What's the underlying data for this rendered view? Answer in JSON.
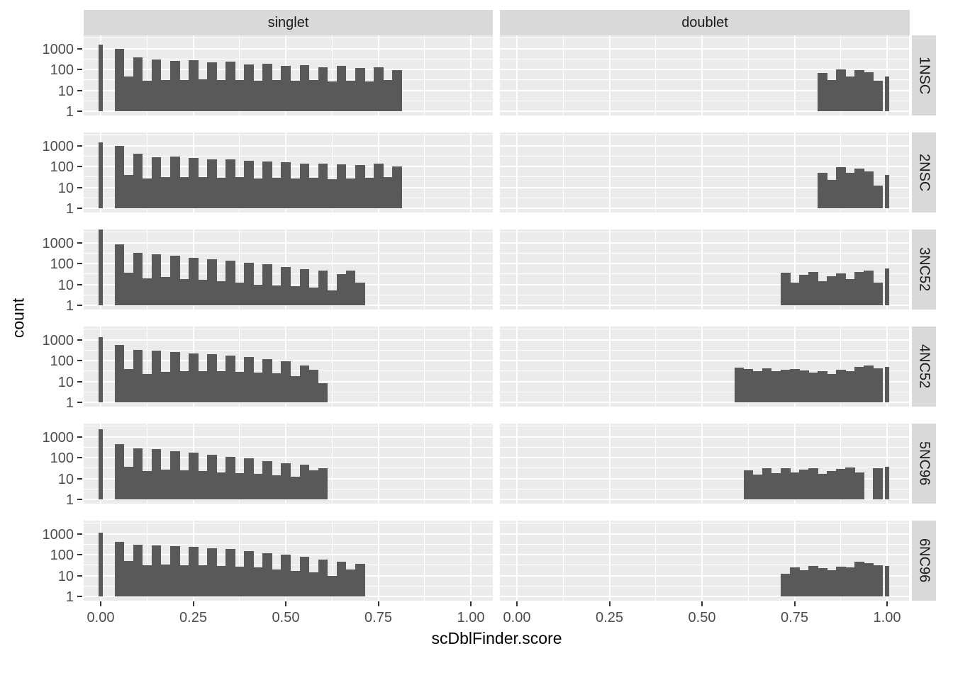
{
  "figure": {
    "xlabel": "scDblFinder.score",
    "ylabel": "count"
  },
  "style": {
    "panel_bg": "#EBEBEB",
    "grid_color": "#FFFFFF",
    "strip_bg": "#D9D9D9",
    "bar_color": "#595959",
    "tick_label_color": "#4D4D4D",
    "axis_title_color": "#000000",
    "tick_mark_color": "#333333"
  },
  "chart_data": {
    "type": "bar",
    "subtype": "faceted-log-histogram",
    "title": "",
    "xlabel": "scDblFinder.score",
    "ylabel": "count",
    "facet_columns": [
      "singlet",
      "doublet"
    ],
    "facet_rows": [
      "1NSC",
      "2NSC",
      "3NC52",
      "4NC52",
      "5NC96",
      "6NC96"
    ],
    "x_scale": {
      "domain": [
        -0.05,
        1.05
      ],
      "ticks": [
        0,
        0.25,
        0.5,
        0.75,
        1.0
      ],
      "tick_labels": [
        "0.00",
        "0.25",
        "0.50",
        "0.75",
        "1.00"
      ],
      "minor_breaks": [
        0.125,
        0.375,
        0.625,
        0.875
      ]
    },
    "y_scale": {
      "type": "log10",
      "domain_log": [
        -0.2,
        3.6
      ],
      "ticks": [
        1000,
        100,
        10,
        1
      ],
      "tick_labels": [
        "1000",
        "100",
        "10",
        "1"
      ],
      "major_log_breaks": [
        0,
        1,
        2,
        3
      ],
      "minor_log_breaks": [
        0.5,
        1.5,
        2.5,
        3.5
      ],
      "grid": true
    },
    "binwidth": 0.025,
    "panels": [
      {
        "facet_row": "1NSC",
        "facet_col": "singlet",
        "spike": {
          "x": 0.0,
          "count": 1500
        },
        "bins": {
          "start": 0.0375,
          "width": 0.025,
          "counts": [
            950,
            45,
            380,
            28,
            300,
            32,
            260,
            30,
            280,
            34,
            210,
            30,
            230,
            32,
            170,
            28,
            190,
            30,
            150,
            28,
            160,
            30,
            130,
            26,
            150,
            28,
            120,
            26,
            130,
            30,
            90
          ]
        }
      },
      {
        "facet_row": "1NSC",
        "facet_col": "doublet",
        "spike": {
          "x": 1.0,
          "count": 45
        },
        "bins": {
          "start": 0.8125,
          "width": 0.025,
          "counts": [
            70,
            30,
            100,
            45,
            90,
            75,
            28
          ]
        }
      },
      {
        "facet_row": "2NSC",
        "facet_col": "singlet",
        "spike": {
          "x": 0.0,
          "count": 1400
        },
        "bins": {
          "start": 0.0375,
          "width": 0.025,
          "counts": [
            1000,
            40,
            420,
            26,
            280,
            30,
            290,
            32,
            250,
            30,
            220,
            28,
            210,
            30,
            180,
            26,
            170,
            28,
            160,
            26,
            140,
            28,
            140,
            24,
            130,
            26,
            120,
            28,
            140,
            32,
            100
          ]
        }
      },
      {
        "facet_row": "2NSC",
        "facet_col": "doublet",
        "spike": {
          "x": 1.0,
          "count": 40
        },
        "bins": {
          "start": 0.8125,
          "width": 0.025,
          "counts": [
            50,
            22,
            90,
            48,
            80,
            60,
            12
          ]
        }
      },
      {
        "facet_row": "3NC52",
        "facet_col": "singlet",
        "spike": {
          "x": 0.0,
          "count": 4500
        },
        "bins": {
          "start": 0.0375,
          "width": 0.025,
          "counts": [
            800,
            35,
            330,
            20,
            280,
            22,
            230,
            18,
            190,
            16,
            160,
            14,
            140,
            12,
            110,
            10,
            90,
            9,
            70,
            8,
            55,
            7,
            45,
            5,
            30,
            45,
            12
          ]
        }
      },
      {
        "facet_row": "3NC52",
        "facet_col": "doublet",
        "spike": {
          "x": 1.0,
          "count": 60
        },
        "bins": {
          "start": 0.7125,
          "width": 0.025,
          "counts": [
            35,
            12,
            28,
            40,
            14,
            24,
            34,
            18,
            40,
            45,
            12
          ]
        }
      },
      {
        "facet_row": "4NC52",
        "facet_col": "singlet",
        "spike": {
          "x": 0.0,
          "count": 1300
        },
        "bins": {
          "start": 0.0375,
          "width": 0.025,
          "counts": [
            550,
            40,
            330,
            22,
            300,
            28,
            260,
            30,
            220,
            32,
            200,
            30,
            170,
            28,
            150,
            26,
            120,
            24,
            90,
            18,
            60,
            35,
            8
          ]
        }
      },
      {
        "facet_row": "4NC52",
        "facet_col": "doublet",
        "spike": {
          "x": 1.0,
          "count": 50
        },
        "bins": {
          "start": 0.5875,
          "width": 0.025,
          "counts": [
            45,
            38,
            30,
            42,
            32,
            36,
            40,
            34,
            26,
            30,
            22,
            36,
            30,
            48,
            58,
            42
          ]
        }
      },
      {
        "facet_row": "5NC96",
        "facet_col": "singlet",
        "spike": {
          "x": 0.0,
          "count": 2300
        },
        "bins": {
          "start": 0.0375,
          "width": 0.025,
          "counts": [
            450,
            35,
            280,
            22,
            260,
            26,
            200,
            24,
            170,
            22,
            140,
            20,
            110,
            18,
            90,
            16,
            70,
            14,
            55,
            12,
            45,
            25,
            30
          ]
        }
      },
      {
        "facet_row": "5NC96",
        "facet_col": "doublet",
        "spike": {
          "x": 1.0,
          "count": 35
        },
        "bins": {
          "start": 0.6125,
          "width": 0.025,
          "counts": [
            25,
            15,
            30,
            18,
            32,
            20,
            26,
            30,
            16,
            22,
            28,
            34,
            20,
            0,
            30
          ]
        }
      },
      {
        "facet_row": "6NC96",
        "facet_col": "singlet",
        "spike": {
          "x": 0.0,
          "count": 1100
        },
        "bins": {
          "start": 0.0375,
          "width": 0.025,
          "counts": [
            400,
            50,
            300,
            30,
            280,
            34,
            250,
            32,
            230,
            30,
            200,
            28,
            180,
            26,
            150,
            24,
            120,
            20,
            100,
            16,
            80,
            14,
            60,
            10,
            45,
            20,
            35
          ]
        }
      },
      {
        "facet_row": "6NC96",
        "facet_col": "doublet",
        "spike": {
          "x": 1.0,
          "count": 28
        },
        "bins": {
          "start": 0.7125,
          "width": 0.025,
          "counts": [
            12,
            25,
            18,
            28,
            22,
            18,
            26,
            24,
            45,
            38,
            30
          ]
        }
      }
    ]
  }
}
